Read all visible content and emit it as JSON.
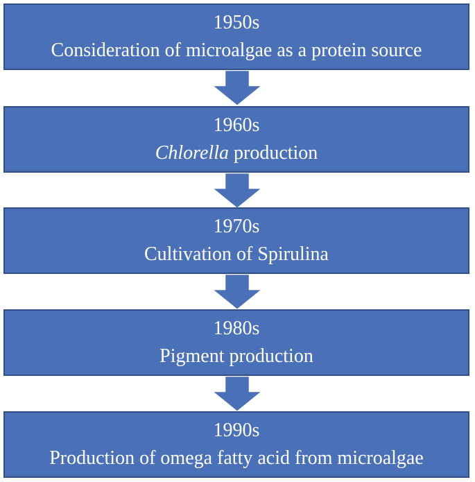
{
  "stages": [
    {
      "decade": "1950s",
      "description_before": "",
      "description_italic": "",
      "description_after": "Consideration of microalgae as a protein source"
    },
    {
      "decade": "1960s",
      "description_before": "",
      "description_italic": "Chlorella",
      "description_after": " production"
    },
    {
      "decade": "1970s",
      "description_before": "",
      "description_italic": "",
      "description_after": "Cultivation of Spirulina"
    },
    {
      "decade": "1980s",
      "description_before": "",
      "description_italic": "",
      "description_after": "Pigment production"
    },
    {
      "decade": "1990s",
      "description_before": "",
      "description_italic": "",
      "description_after": "Production of omega fatty acid from microalgae"
    }
  ],
  "colors": {
    "box_fill": "#4a71b8",
    "box_border": "#2f4f86",
    "arrow_fill": "#4a71b8",
    "arrow_border": "#ffffff",
    "text": "#ffffff"
  }
}
